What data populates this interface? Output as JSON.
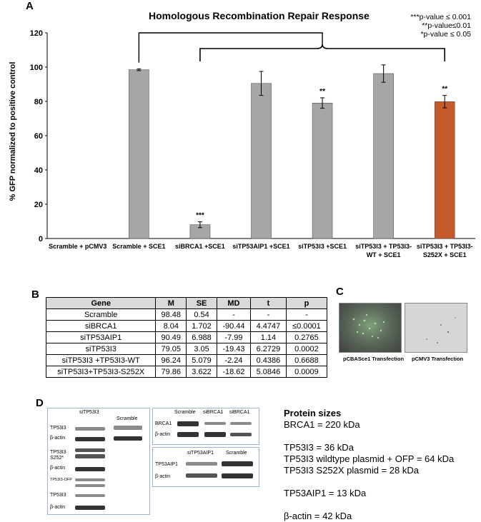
{
  "panels": {
    "a": "A",
    "b": "B",
    "c": "C",
    "d": "D"
  },
  "chart_data": {
    "type": "bar",
    "title": "Homologous Recombination Repair Response",
    "ylabel": "% GFP normalized to positive control",
    "ylim": [
      0,
      120
    ],
    "yticks": [
      0,
      20,
      40,
      60,
      80,
      100,
      120
    ],
    "categories": [
      "Scramble + pCMV3",
      "Scramble + SCE1",
      "siBRCA1 +SCE1",
      "siTP53AIP1 +SCE1",
      "siTP53I3 +SCE1",
      "siTP53I3 + TP53I3-WT + SCE1",
      "siTP53I3 + TP53I3-S252X + SCE1"
    ],
    "category_lines": [
      [
        "Scramble + pCMV3"
      ],
      [
        "Scramble + SCE1"
      ],
      [
        "siBRCA1 +SCE1"
      ],
      [
        "siTP53AIP1 +SCE1"
      ],
      [
        "siTP53I3 +SCE1"
      ],
      [
        "siTP53I3 + TP53I3-",
        "WT + SCE1"
      ],
      [
        "siTP53I3 + TP53I3-",
        "S252X + SCE1"
      ]
    ],
    "values": [
      0,
      98.48,
      8.04,
      90.49,
      79.05,
      96.24,
      79.86
    ],
    "errors": [
      0,
      0.54,
      1.702,
      6.988,
      3.05,
      5.079,
      3.622
    ],
    "significance": [
      "",
      "",
      "***",
      "",
      "**",
      "",
      "**"
    ],
    "colors": [
      "#a6a6a6",
      "#a6a6a6",
      "#a6a6a6",
      "#a6a6a6",
      "#a6a6a6",
      "#a6a6a6",
      "#c55a2a"
    ],
    "pvalue_legend": [
      "***p-value ≤ 0.001",
      "**p-value≤0.01",
      "*p-value ≤ 0.05"
    ]
  },
  "table": {
    "headers": [
      "Gene",
      "M",
      "SE",
      "MD",
      "t",
      "p"
    ],
    "rows": [
      [
        "Scramble",
        "98.48",
        "0.54",
        "-",
        "-",
        "-"
      ],
      [
        "siBRCA1",
        "8.04",
        "1.702",
        "-90.44",
        "4.4747",
        "≤0.0001"
      ],
      [
        "siTP53AIP1",
        "90.49",
        "6.988",
        "-7.99",
        "1.14",
        "0.2765"
      ],
      [
        "siTP53I3",
        "79.05",
        "3.05",
        "-19.43",
        "6.2729",
        "0.0002"
      ],
      [
        "siTP53I3 +TP53I3-WT",
        "96.24",
        "5.079",
        "-2.24",
        "0.4386",
        "0.6688"
      ],
      [
        "siTP53I3+TP53I3-S252X",
        "79.86",
        "3.622",
        "-18.62",
        "5.0846",
        "0.0009"
      ]
    ]
  },
  "microscopy": {
    "left_caption": "pCBASce1 Transfection",
    "right_caption": "pCMV3 Transfection"
  },
  "blots": {
    "left": {
      "header_1": "siTP53I3",
      "header_2": "Scramble",
      "labels": [
        "TP53I3",
        "β-actin",
        "TP53I3 S252*",
        "β-actin",
        "TP53I3-OFP",
        "TP53I3",
        "β-actin"
      ]
    },
    "top_right": {
      "headers": [
        "Scramble",
        "siBRCA1",
        "siBRCA1"
      ],
      "labels": [
        "BRCA1",
        "β-actin"
      ]
    },
    "bottom_right": {
      "headers": [
        "siTP53AIP1",
        "Scramble"
      ],
      "labels": [
        "TP53AIP1",
        "β-actin"
      ]
    }
  },
  "protein_sizes": {
    "title": "Protein sizes",
    "lines": [
      "BRCA1 = 220 kDa",
      "",
      "TP53I3 = 36 kDa",
      "TP53I3 wildtype plasmid + OFP = 64 kDa",
      "TP53I3 S252X plasmid = 28 kDa",
      "",
      "TP53AIP1 = 13 kDa",
      "",
      "β-actin = 42 kDa"
    ]
  }
}
